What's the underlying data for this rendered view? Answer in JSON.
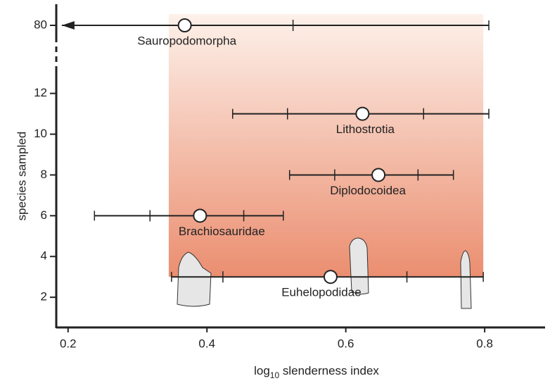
{
  "chart_data": {
    "type": "range-scatter",
    "x_label": {
      "base": "log",
      "subscript": "10",
      "rest": " slenderness index"
    },
    "y_label": "species sampled",
    "xlim": [
      0.183,
      0.887
    ],
    "xticks": [
      0.2,
      0.4,
      0.6,
      0.8
    ],
    "ylim": [
      0.52,
      13.3
    ],
    "yticks": [
      2,
      4,
      6,
      8,
      10,
      12
    ],
    "y_upper_lim": [
      79,
      81
    ],
    "y_upper_ticks": [
      80
    ],
    "highlight_xrange": [
      0.345,
      0.798
    ],
    "highlight_ymin": 3,
    "highlight_colors": [
      "#fdf1ea",
      "#eb8e70"
    ],
    "line_color": "#222222",
    "point_fill": "#ffffff",
    "series": [
      {
        "name": "Sauropodomorpha",
        "y": 80,
        "x": 0.368,
        "low": 0.191,
        "high": 0.806,
        "q": [
          0.524
        ],
        "low_arrow": true
      },
      {
        "name": "Lithostrotia",
        "y": 11,
        "x": 0.624,
        "low": 0.437,
        "high": 0.806,
        "q": [
          0.516,
          0.712
        ]
      },
      {
        "name": "Diplodocoidea",
        "y": 8,
        "x": 0.647,
        "low": 0.519,
        "high": 0.755,
        "q": [
          0.584,
          0.704
        ]
      },
      {
        "name": "Brachiosauridae",
        "y": 6,
        "x": 0.39,
        "low": 0.238,
        "high": 0.51,
        "q": [
          0.318,
          0.453
        ]
      },
      {
        "name": "Euhelopodidae",
        "y": 3,
        "x": 0.578,
        "low": 0.349,
        "high": 0.798,
        "q": [
          0.423,
          0.688
        ]
      }
    ]
  }
}
